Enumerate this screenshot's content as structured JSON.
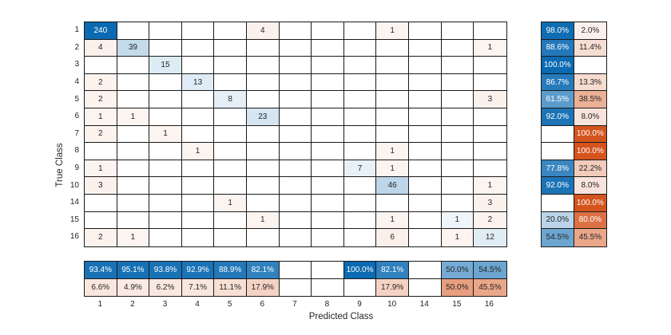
{
  "chart_data": {
    "type": "heatmap",
    "chart_kind": "confusion-matrix",
    "title": "",
    "xlabel": "Predicted Class",
    "ylabel": "True Class",
    "classes": [
      "1",
      "2",
      "3",
      "4",
      "5",
      "6",
      "7",
      "8",
      "9",
      "10",
      "14",
      "15",
      "16"
    ],
    "matrix": [
      [
        240,
        0,
        0,
        0,
        0,
        4,
        0,
        0,
        0,
        1,
        0,
        0,
        0
      ],
      [
        4,
        39,
        0,
        0,
        0,
        0,
        0,
        0,
        0,
        0,
        0,
        0,
        1
      ],
      [
        0,
        0,
        15,
        0,
        0,
        0,
        0,
        0,
        0,
        0,
        0,
        0,
        0
      ],
      [
        2,
        0,
        0,
        13,
        0,
        0,
        0,
        0,
        0,
        0,
        0,
        0,
        0
      ],
      [
        2,
        0,
        0,
        0,
        8,
        0,
        0,
        0,
        0,
        0,
        0,
        0,
        3
      ],
      [
        1,
        1,
        0,
        0,
        0,
        23,
        0,
        0,
        0,
        0,
        0,
        0,
        0
      ],
      [
        2,
        0,
        1,
        0,
        0,
        0,
        0,
        0,
        0,
        0,
        0,
        0,
        0
      ],
      [
        0,
        0,
        0,
        1,
        0,
        0,
        0,
        0,
        0,
        1,
        0,
        0,
        0
      ],
      [
        1,
        0,
        0,
        0,
        0,
        0,
        0,
        0,
        7,
        1,
        0,
        0,
        0
      ],
      [
        3,
        0,
        0,
        0,
        0,
        0,
        0,
        0,
        0,
        46,
        0,
        0,
        1
      ],
      [
        0,
        0,
        0,
        0,
        1,
        0,
        0,
        0,
        0,
        0,
        0,
        0,
        3
      ],
      [
        0,
        0,
        0,
        0,
        0,
        1,
        0,
        0,
        0,
        1,
        0,
        1,
        2
      ],
      [
        2,
        1,
        0,
        0,
        0,
        0,
        0,
        0,
        0,
        6,
        0,
        1,
        12
      ]
    ],
    "max_count": 240,
    "row_summary": {
      "recall": [
        "98.0%",
        "88.6%",
        "100.0%",
        "86.7%",
        "61.5%",
        "92.0%",
        "",
        "",
        "77.8%",
        "92.0%",
        "",
        "20.0%",
        "54.5%"
      ],
      "false_negative_rate": [
        "2.0%",
        "11.4%",
        "",
        "13.3%",
        "38.5%",
        "8.0%",
        "100.0%",
        "100.0%",
        "22.2%",
        "8.0%",
        "100.0%",
        "80.0%",
        "45.5%"
      ]
    },
    "col_summary": {
      "precision": [
        "93.4%",
        "95.1%",
        "93.8%",
        "92.9%",
        "88.9%",
        "82.1%",
        "",
        "",
        "100.0%",
        "82.1%",
        "",
        "50.0%",
        "54.5%"
      ],
      "false_discovery_rate": [
        "6.6%",
        "4.9%",
        "6.2%",
        "7.1%",
        "11.1%",
        "17.9%",
        "",
        "",
        "",
        "17.9%",
        "",
        "50.0%",
        "45.5%"
      ]
    },
    "layout_hints": {
      "legend": "none",
      "grid": "on",
      "row_summary_position": "right",
      "col_summary_position": "bottom"
    },
    "colors": {
      "correct_base": "#0b6ab2",
      "incorrect_base": "#d4541d",
      "grid_line": "#1a1a1a",
      "text_dark": "#262626",
      "text_light": "#ffffff",
      "empty_cell": "#ffffff"
    }
  }
}
